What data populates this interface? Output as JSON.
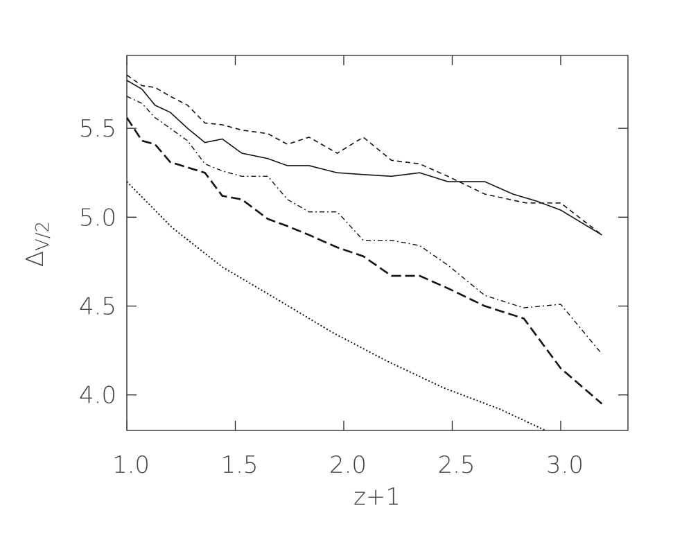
{
  "chart_data": {
    "type": "line",
    "xlabel": "z+1",
    "ylabel": {
      "symbol": "Δ",
      "subscript": "V/2"
    },
    "xlim": [
      1.0,
      3.31
    ],
    "ylim": [
      3.8,
      5.91
    ],
    "xticks": [
      {
        "value": 1,
        "label": "1.0"
      },
      1.5,
      {
        "value": 2,
        "label": "2.0"
      },
      2.5,
      {
        "value": 3,
        "label": "3.0"
      }
    ],
    "yticks": [
      {
        "value": 4,
        "label": "4.0"
      },
      4.5,
      {
        "value": 5,
        "label": "5.0"
      },
      5.5
    ],
    "series": [
      {
        "color": "#111",
        "style": "solid",
        "x": [
          1.0,
          1.07,
          1.13,
          1.2,
          1.28,
          1.36,
          1.44,
          1.53,
          1.65,
          1.74,
          1.84,
          1.97,
          2.09,
          2.22,
          2.35,
          2.48,
          2.65,
          2.78,
          2.89,
          3.0,
          3.19
        ],
        "values": [
          5.77,
          5.72,
          5.63,
          5.59,
          5.5,
          5.42,
          5.44,
          5.36,
          5.33,
          5.29,
          5.29,
          5.25,
          5.24,
          5.23,
          5.25,
          5.2,
          5.2,
          5.13,
          5.09,
          5.04,
          4.9
        ]
      },
      {
        "color": "#111",
        "style": "dash",
        "x": [
          1.0,
          1.07,
          1.13,
          1.2,
          1.28,
          1.36,
          1.44,
          1.53,
          1.65,
          1.74,
          1.84,
          1.97,
          2.09,
          2.22,
          2.35,
          2.48,
          2.65,
          2.84,
          3.0,
          3.19
        ],
        "values": [
          5.8,
          5.74,
          5.73,
          5.68,
          5.63,
          5.53,
          5.52,
          5.49,
          5.47,
          5.41,
          5.45,
          5.36,
          5.45,
          5.32,
          5.3,
          5.23,
          5.13,
          5.08,
          5.08,
          4.9
        ]
      },
      {
        "color": "#111",
        "style": "dashdot",
        "x": [
          1.0,
          1.07,
          1.13,
          1.2,
          1.28,
          1.36,
          1.44,
          1.53,
          1.65,
          1.74,
          1.84,
          1.97,
          2.09,
          2.22,
          2.35,
          2.48,
          2.65,
          2.83,
          3.0,
          3.19
        ],
        "values": [
          5.68,
          5.64,
          5.56,
          5.5,
          5.43,
          5.3,
          5.26,
          5.23,
          5.23,
          5.1,
          5.03,
          5.03,
          4.87,
          4.87,
          4.84,
          4.73,
          4.56,
          4.49,
          4.51,
          4.23
        ]
      },
      {
        "color": "#111",
        "style": "longdash",
        "x": [
          1.0,
          1.07,
          1.13,
          1.2,
          1.28,
          1.36,
          1.44,
          1.53,
          1.65,
          1.74,
          1.84,
          1.97,
          2.09,
          2.22,
          2.35,
          2.48,
          2.65,
          2.83,
          3.0,
          3.19
        ],
        "values": [
          5.56,
          5.43,
          5.41,
          5.31,
          5.28,
          5.25,
          5.12,
          5.1,
          4.99,
          4.95,
          4.9,
          4.83,
          4.78,
          4.67,
          4.67,
          4.6,
          4.5,
          4.43,
          4.15,
          3.95
        ]
      },
      {
        "color": "#111",
        "style": "dotted",
        "x": [
          1.0,
          1.21,
          1.44,
          1.69,
          1.95,
          2.2,
          2.46,
          2.72,
          2.93
        ],
        "values": [
          5.2,
          4.94,
          4.72,
          4.54,
          4.35,
          4.19,
          4.04,
          3.92,
          3.8
        ]
      }
    ]
  }
}
